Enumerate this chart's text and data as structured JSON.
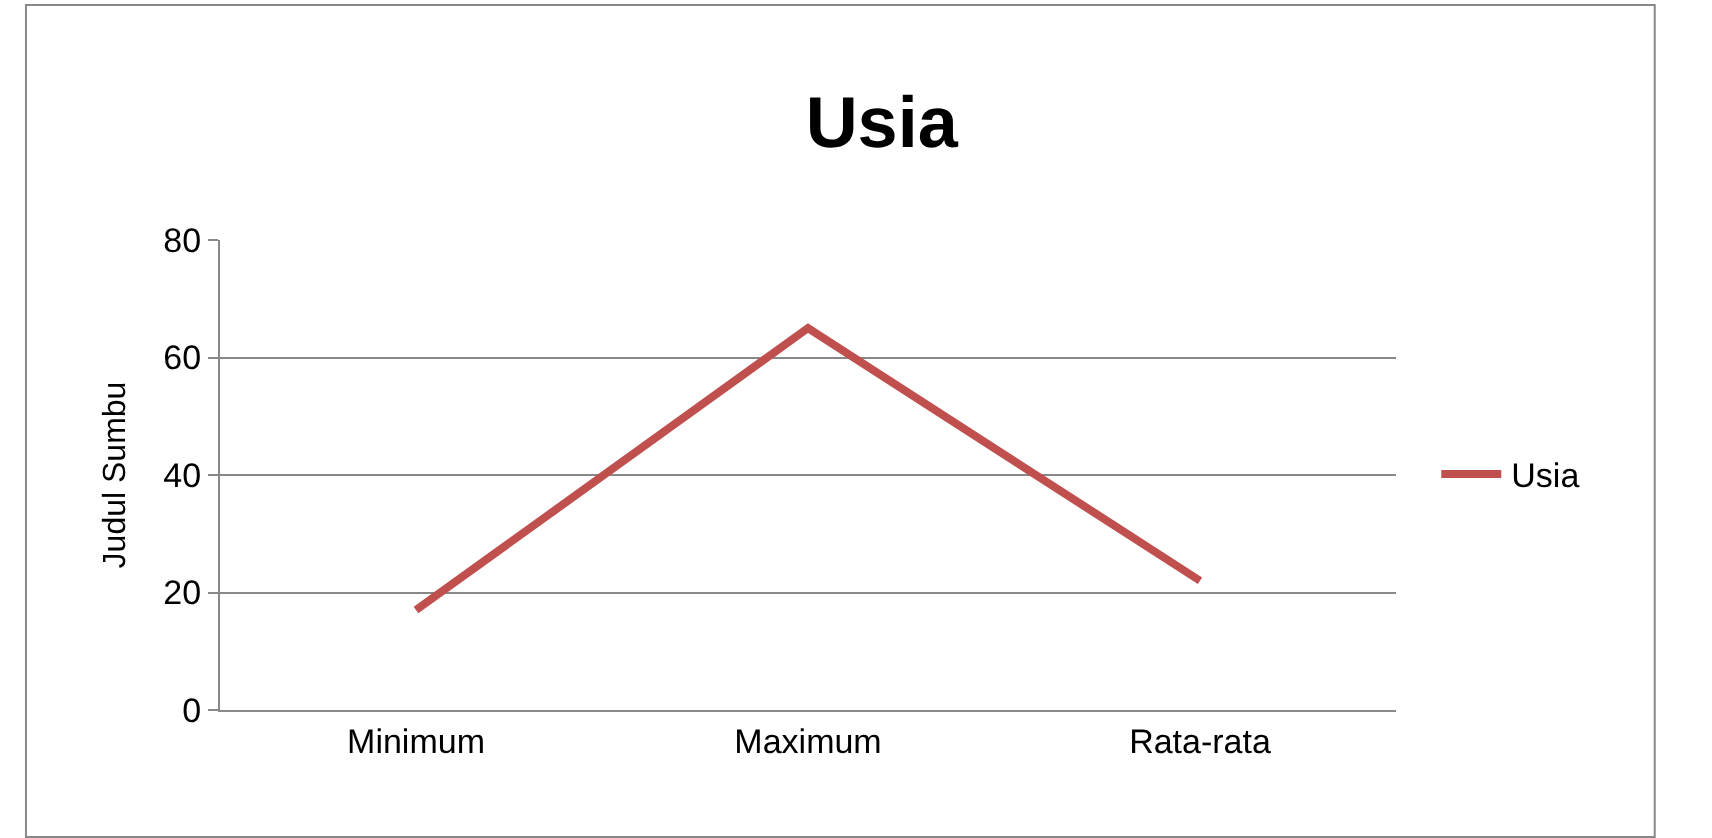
{
  "chart_data": {
    "type": "line",
    "title": "Usia",
    "ylabel": "Judul Sumbu",
    "categories": [
      "Minimum",
      "Maximum",
      "Rata-rata"
    ],
    "series": [
      {
        "name": "Usia",
        "color": "#c0504d",
        "values": [
          17,
          65,
          22
        ]
      }
    ],
    "ylim": [
      0,
      80
    ],
    "yticks": [
      0,
      20,
      40,
      60,
      80
    ],
    "grid": "y",
    "legend": "right",
    "marker": "none",
    "line_style": "solid"
  }
}
